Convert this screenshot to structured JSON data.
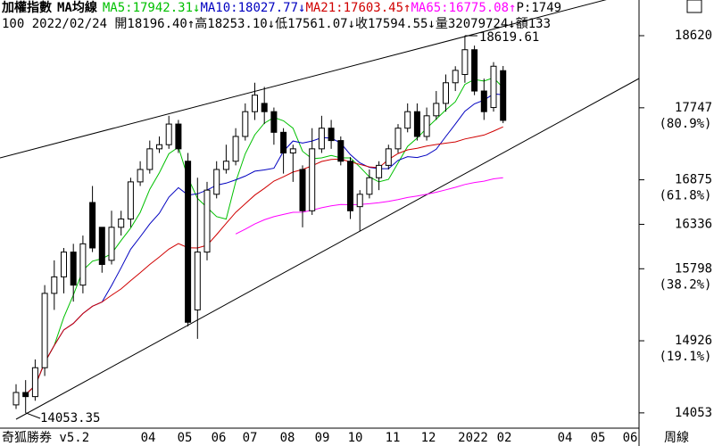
{
  "chart_data": {
    "type": "candlestick",
    "title": "加權指數",
    "subtitle": "MA均線",
    "moving_averages": [
      {
        "label": "MA5:17942.31↓",
        "color": "#00c000"
      },
      {
        "label": "MA10:18027.77↓",
        "color": "#0000c0"
      },
      {
        "label": "MA21:17603.45↑",
        "color": "#d00000"
      },
      {
        "label": "MA65:16775.08↑",
        "color": "#ff00ff"
      }
    ],
    "p_label": "P:1749",
    "quote_line": "100 2022/02/24 開18196.40↑高18253.10↓低17561.07↓收17594.55↓量32079724↓額133",
    "candles": {
      "open": [
        14150,
        14300,
        14250,
        14600,
        15500,
        15700,
        16000,
        15600,
        16600,
        16300,
        15900,
        16300,
        16400,
        16850,
        17000,
        17250,
        17300,
        17550,
        17100,
        15300,
        16000,
        16700,
        17000,
        17100,
        17400,
        17700,
        17800,
        17700,
        17450,
        17200,
        17000,
        16500,
        17250,
        17500,
        17350,
        17100,
        16550,
        16700,
        16900,
        17050,
        17250,
        17500,
        17700,
        17400,
        17650,
        17800,
        18050,
        18150,
        18450,
        17950,
        17750,
        18196.4
      ],
      "high": [
        14400,
        14450,
        14700,
        15600,
        15900,
        16050,
        16100,
        16200,
        16800,
        16300,
        16500,
        16500,
        16900,
        17100,
        17350,
        17400,
        17650,
        17600,
        17200,
        16900,
        16850,
        17100,
        17300,
        17500,
        17800,
        18050,
        18000,
        17750,
        17500,
        17300,
        17050,
        17500,
        17650,
        17600,
        17400,
        17150,
        16750,
        17000,
        17100,
        17300,
        17550,
        17800,
        17800,
        17750,
        17950,
        18150,
        18250,
        18619.61,
        18500,
        18100,
        18300,
        18253.1
      ],
      "low": [
        14100,
        14053.35,
        14200,
        14500,
        15300,
        15500,
        15400,
        15500,
        16000,
        15750,
        15850,
        16200,
        16300,
        16800,
        16950,
        17200,
        17250,
        17200,
        15100,
        14950,
        15900,
        16650,
        16950,
        17050,
        17350,
        17600,
        17550,
        17300,
        16950,
        16850,
        16300,
        16450,
        17200,
        17250,
        17050,
        16400,
        16250,
        16650,
        16750,
        17000,
        17200,
        17450,
        17350,
        17350,
        17600,
        17700,
        17950,
        18050,
        17900,
        17600,
        17700,
        17561.07
      ],
      "close": [
        14300,
        14250,
        14600,
        15500,
        15700,
        16000,
        15600,
        16100,
        16050,
        15850,
        16300,
        16400,
        16850,
        17000,
        17250,
        17300,
        17550,
        17250,
        15150,
        16000,
        16750,
        17000,
        17100,
        17400,
        17700,
        17900,
        17700,
        17450,
        17200,
        17250,
        16500,
        17250,
        17500,
        17350,
        17100,
        16500,
        16700,
        16900,
        17050,
        17250,
        17500,
        17700,
        17400,
        17650,
        17800,
        18050,
        18200,
        18450,
        17950,
        17700,
        18250,
        17594.55
      ]
    },
    "ylim": [
      13868,
      19052
    ],
    "yticks": [
      18620,
      17747,
      16875,
      16336,
      15798,
      14926,
      14053
    ],
    "ratio_labels": [
      null,
      "(80.9%)",
      "(61.8%)",
      null,
      "(38.2%)",
      "(19.1%)",
      null
    ],
    "x_labels": [
      "04",
      "05",
      "06",
      "07",
      "08",
      "09",
      "10",
      "11",
      "12",
      "2022",
      "02",
      "04",
      "05",
      "06"
    ],
    "period_label": "周線",
    "software_label": "奇狐勝券 v5.2"
  }
}
